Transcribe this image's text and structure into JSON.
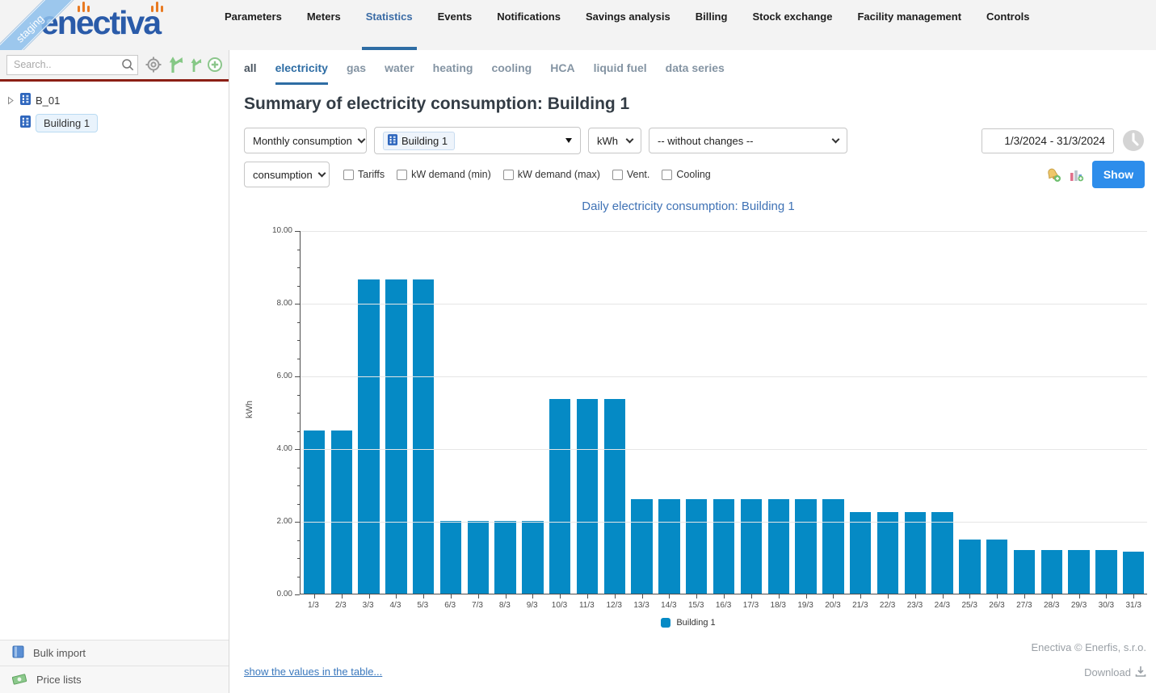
{
  "brand": {
    "logo_text": "enectiva",
    "ribbon_text": "staging"
  },
  "nav": {
    "items": [
      {
        "label": "Parameters",
        "active": false
      },
      {
        "label": "Meters",
        "active": false
      },
      {
        "label": "Statistics",
        "active": true
      },
      {
        "label": "Events",
        "active": false
      },
      {
        "label": "Notifications",
        "active": false
      },
      {
        "label": "Savings analysis",
        "active": false
      },
      {
        "label": "Billing",
        "active": false
      },
      {
        "label": "Stock exchange",
        "active": false
      },
      {
        "label": "Facility management",
        "active": false
      },
      {
        "label": "Controls",
        "active": false
      }
    ]
  },
  "sidebar": {
    "search_placeholder": "Search..",
    "tree": [
      {
        "label": "B_01",
        "expandable": true,
        "selected": false
      },
      {
        "label": "Building 1",
        "expandable": false,
        "selected": true
      }
    ],
    "footer_items": [
      {
        "label": "Bulk import"
      },
      {
        "label": "Price lists"
      }
    ]
  },
  "tabs": {
    "items": [
      {
        "label": "all",
        "style": "dark"
      },
      {
        "label": "electricity",
        "style": "active"
      },
      {
        "label": "gas",
        "style": "muted"
      },
      {
        "label": "water",
        "style": "muted"
      },
      {
        "label": "heating",
        "style": "muted"
      },
      {
        "label": "cooling",
        "style": "muted"
      },
      {
        "label": "HCA",
        "style": "muted"
      },
      {
        "label": "liquid fuel",
        "style": "muted"
      },
      {
        "label": "data series",
        "style": "muted"
      }
    ]
  },
  "page": {
    "title": "Summary of electricity consumption: Building 1"
  },
  "controls": {
    "period_select": "Monthly consumption",
    "meter_select": "Building 1",
    "unit_select": "kWh",
    "changes_select": "-- without changes --",
    "date_range": "1/3/2024 - 31/3/2024",
    "quantity_select": "consumption",
    "checkboxes": [
      {
        "label": "Tariffs",
        "checked": false
      },
      {
        "label": "kW demand (min)",
        "checked": false
      },
      {
        "label": "kW demand (max)",
        "checked": false
      },
      {
        "label": "Vent.",
        "checked": false
      },
      {
        "label": "Cooling",
        "checked": false
      }
    ],
    "show_button": "Show"
  },
  "chart_data": {
    "type": "bar",
    "title": "Daily electricity consumption: Building 1",
    "xlabel": "",
    "ylabel": "kWh",
    "ylim": [
      0,
      10
    ],
    "yticks": [
      0,
      2,
      4,
      6,
      8,
      10
    ],
    "grid": true,
    "legend_position": "bottom",
    "bar_color": "#058ac5",
    "categories": [
      "1/3",
      "2/3",
      "3/3",
      "4/3",
      "5/3",
      "6/3",
      "7/3",
      "8/3",
      "9/3",
      "10/3",
      "11/3",
      "12/3",
      "13/3",
      "14/3",
      "15/3",
      "16/3",
      "17/3",
      "18/3",
      "19/3",
      "20/3",
      "21/3",
      "22/3",
      "23/3",
      "24/3",
      "25/3",
      "26/3",
      "27/3",
      "28/3",
      "29/3",
      "30/3",
      "31/3"
    ],
    "series": [
      {
        "name": "Building 1",
        "values": [
          4.5,
          4.5,
          8.65,
          8.65,
          8.65,
          2.0,
          2.0,
          2.0,
          2.0,
          5.35,
          5.35,
          5.35,
          2.6,
          2.6,
          2.6,
          2.6,
          2.6,
          2.6,
          2.6,
          2.6,
          2.25,
          2.25,
          2.25,
          2.25,
          1.5,
          1.5,
          1.2,
          1.2,
          1.2,
          1.2,
          1.15
        ]
      }
    ]
  },
  "footer": {
    "table_link": "show the values in the table...",
    "copyright": "Enectiva © Enerfis, s.r.o.",
    "download_label": "Download"
  },
  "colors": {
    "accent": "#2e6da4",
    "bar": "#058ac5",
    "show_button": "#2d8deb",
    "ribbon": "#8cbeeb",
    "divider_red": "#8c1f15"
  },
  "icons": [
    "magnifier-icon",
    "target-icon",
    "branch-large-icon",
    "branch-small-icon",
    "add-circle-icon",
    "caret-right-icon",
    "building-icon",
    "book-icon",
    "money-icon",
    "chevron-down-icon",
    "dropdown-arrow-icon",
    "clock-icon",
    "bell-add-icon",
    "chart-add-icon",
    "download-icon"
  ]
}
